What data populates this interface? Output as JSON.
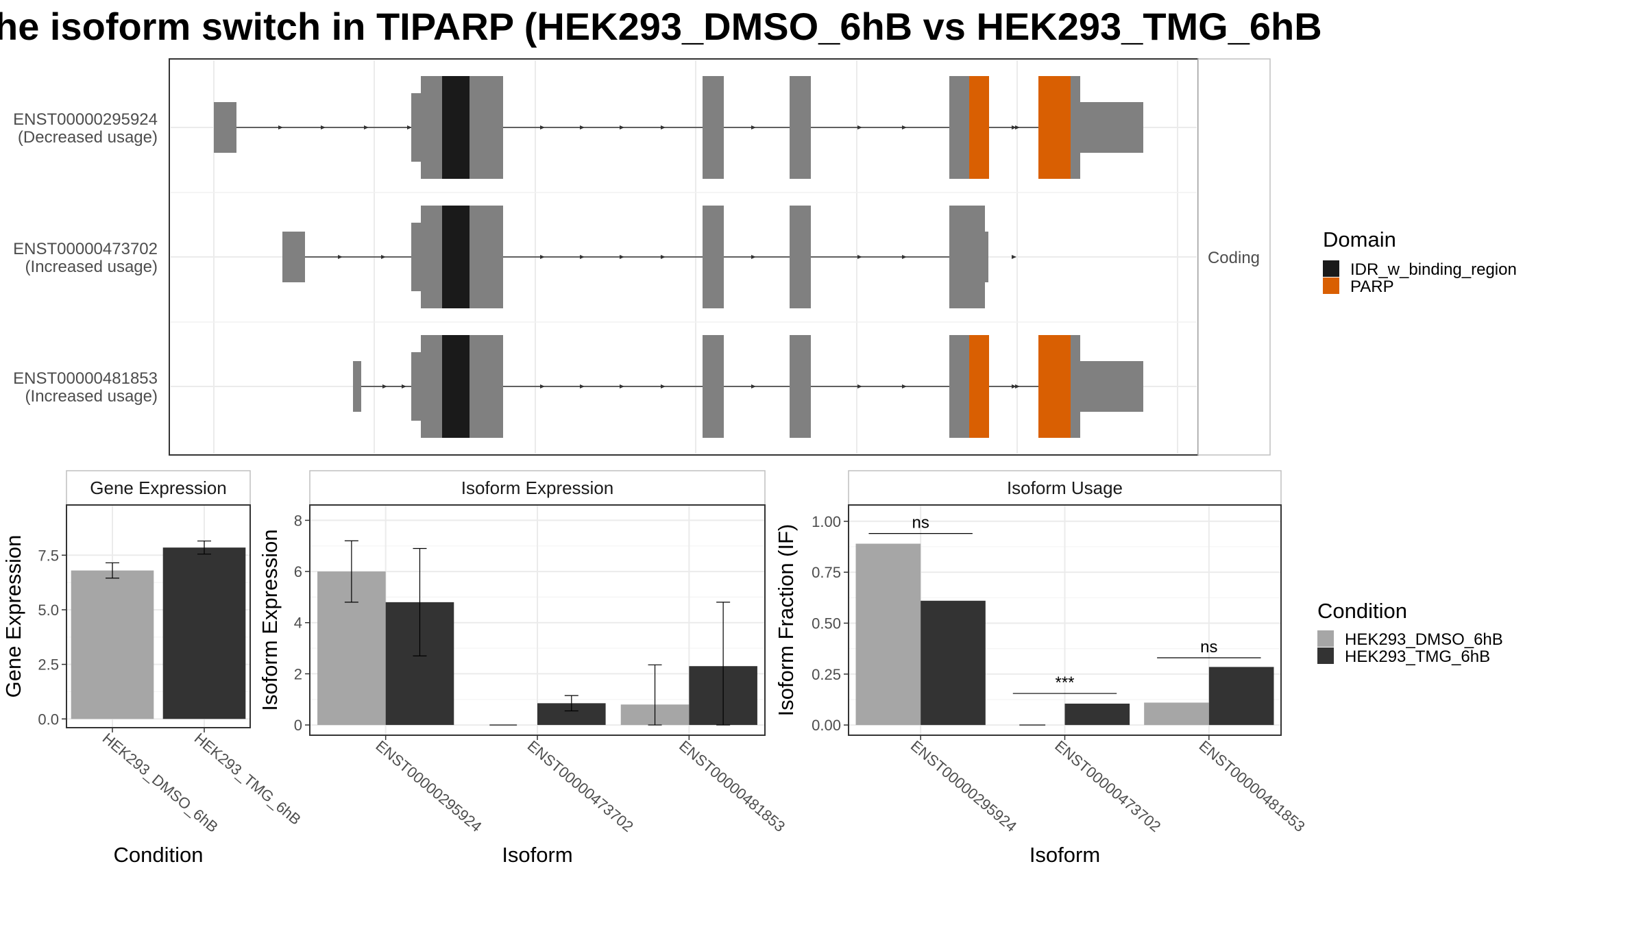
{
  "title": "he isoform switch in TIPARP (HEK293_DMSO_6hB vs HEK293_TMG_6hB",
  "structure": {
    "strip_label": "Coding",
    "isoforms": [
      {
        "id": "ENST00000295924",
        "usage": "(Decreased usage)"
      },
      {
        "id": "ENST00000473702",
        "usage": "(Increased usage)"
      },
      {
        "id": "ENST00000481853",
        "usage": "(Increased usage)"
      }
    ],
    "domain_legend": {
      "title": "Domain",
      "items": [
        {
          "label": "IDR_w_binding_region",
          "color": "#1a1a1a"
        },
        {
          "label": "PARP",
          "color": "#d95f02"
        }
      ]
    }
  },
  "condition_legend": {
    "title": "Condition",
    "items": [
      {
        "label": "HEK293_DMSO_6hB",
        "color": "#a6a6a6"
      },
      {
        "label": "HEK293_TMG_6hB",
        "color": "#333333"
      }
    ]
  },
  "chart_data": [
    {
      "type": "bar",
      "title": "Gene Expression",
      "xlabel": "Condition",
      "ylabel": "Gene Expression",
      "categories": [
        "HEK293_DMSO_6hB",
        "HEK293_TMG_6hB"
      ],
      "values": [
        6.8,
        7.85
      ],
      "error_low": [
        6.45,
        7.55
      ],
      "error_high": [
        7.15,
        8.15
      ],
      "yticks": [
        "0.0",
        "2.5",
        "5.0",
        "7.5"
      ],
      "ylim": [
        -0.4,
        9.8
      ]
    },
    {
      "type": "bar",
      "title": "Isoform Expression",
      "xlabel": "Isoform",
      "ylabel": "Isoform Expression",
      "categories": [
        "ENST00000295924",
        "ENST00000473702",
        "ENST00000481853"
      ],
      "series": [
        {
          "name": "HEK293_DMSO_6hB",
          "values": [
            6.0,
            0.0,
            0.8
          ],
          "error_low": [
            4.8,
            0.0,
            0.0
          ],
          "error_high": [
            7.2,
            0.0,
            2.35
          ]
        },
        {
          "name": "HEK293_TMG_6hB",
          "values": [
            4.8,
            0.85,
            2.3
          ],
          "error_low": [
            2.7,
            0.55,
            0.0
          ],
          "error_high": [
            6.9,
            1.15,
            4.8
          ]
        }
      ],
      "yticks": [
        "0",
        "2",
        "4",
        "6",
        "8"
      ],
      "ylim": [
        -0.4,
        8.6
      ]
    },
    {
      "type": "bar",
      "title": "Isoform Usage",
      "xlabel": "Isoform",
      "ylabel": "Isoform Fraction (IF)",
      "categories": [
        "ENST00000295924",
        "ENST00000473702",
        "ENST00000481853"
      ],
      "series": [
        {
          "name": "HEK293_DMSO_6hB",
          "values": [
            0.89,
            0.0,
            0.11
          ]
        },
        {
          "name": "HEK293_TMG_6hB",
          "values": [
            0.61,
            0.105,
            0.285
          ]
        }
      ],
      "significance": [
        {
          "label": "ns",
          "y": 0.94
        },
        {
          "label": "***",
          "y": 0.155
        },
        {
          "label": "ns",
          "y": 0.33
        }
      ],
      "yticks": [
        "0.00",
        "0.25",
        "0.50",
        "0.75",
        "1.00"
      ],
      "ylim": [
        -0.05,
        1.08
      ]
    }
  ]
}
